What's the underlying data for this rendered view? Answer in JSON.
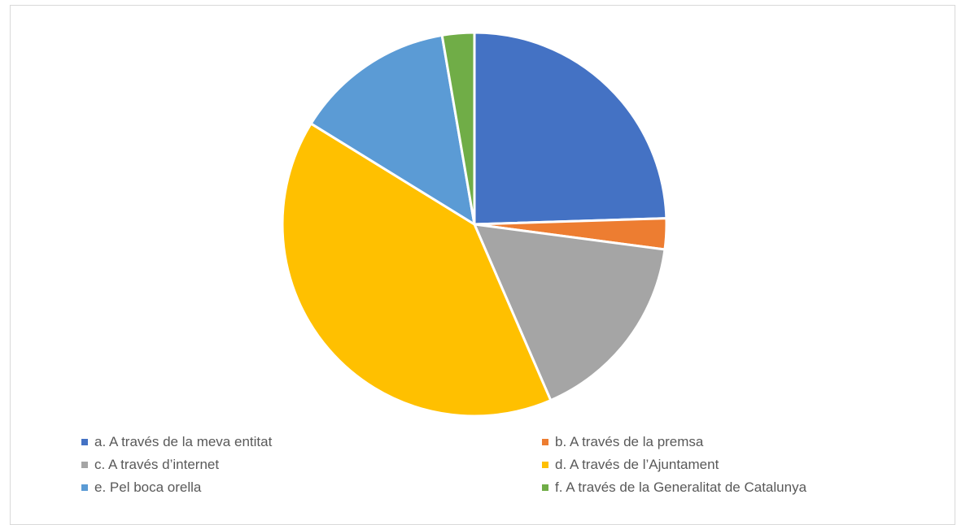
{
  "chart_data": {
    "type": "pie",
    "title": "",
    "categories": [
      "a. A través de la meva entitat",
      "b. A través de la premsa",
      "c. A través d’internet",
      "d. A través de l’Ajuntament",
      "e. Pel boca orella",
      "f. A través de la Generalitat de Catalunya"
    ],
    "values": [
      24.5,
      2.6,
      16.4,
      40.3,
      13.5,
      2.7
    ],
    "colors": [
      "#4472c4",
      "#ed7d31",
      "#a5a5a5",
      "#ffc000",
      "#5b9bd5",
      "#70ad47"
    ],
    "legend_position": "bottom",
    "start_angle": "12 o'clock, clockwise"
  }
}
